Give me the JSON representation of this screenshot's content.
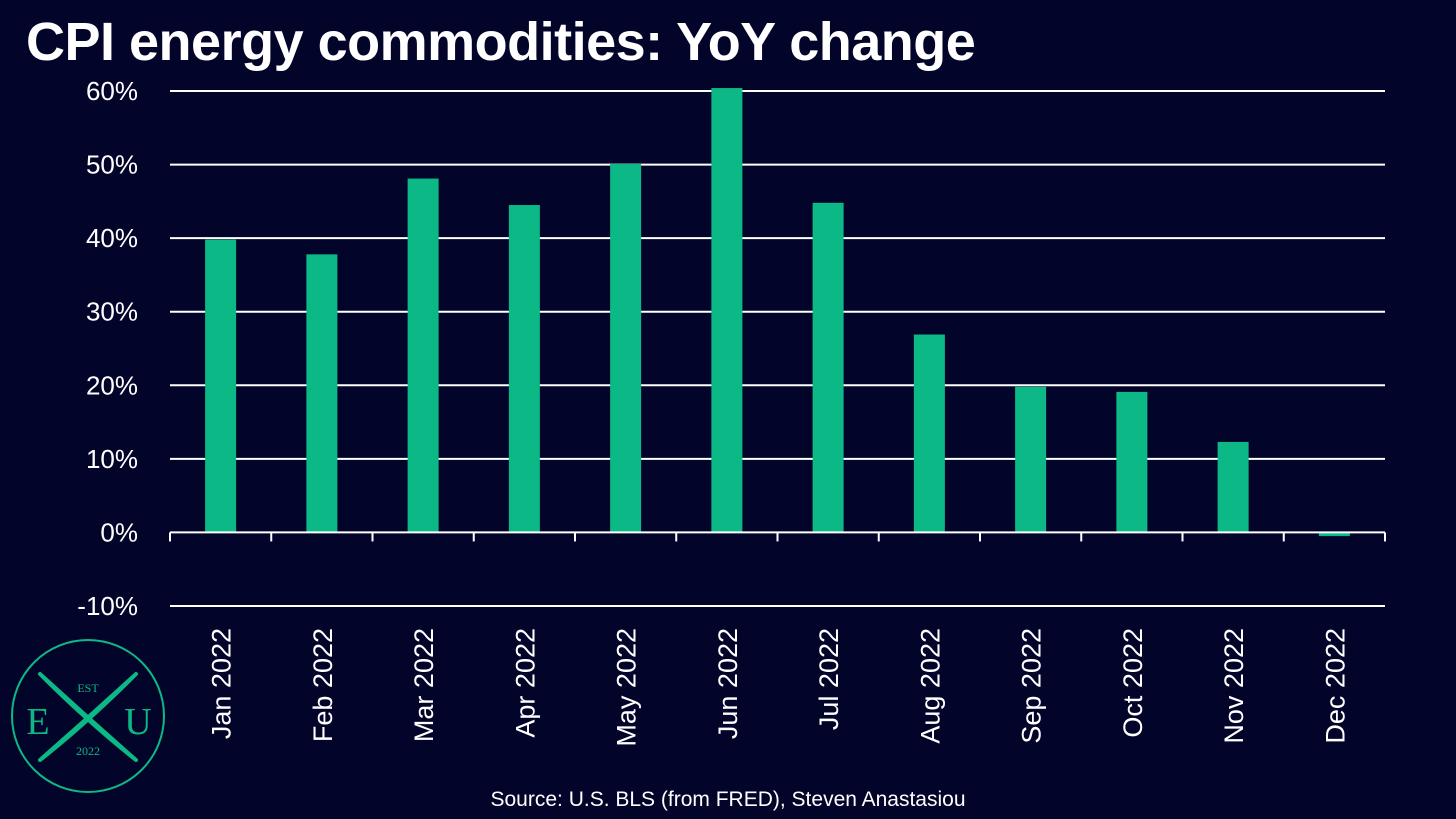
{
  "title": "CPI energy commodities: YoY change",
  "source": "Source: U.S. BLS (from FRED), Steven Anastasiou",
  "logo": {
    "top_text": "EST",
    "left_letter": "E",
    "right_letter": "U",
    "bottom_text": "2022"
  },
  "colors": {
    "background": "#03042a",
    "bar": "#0cb886",
    "grid": "#ffffff",
    "text": "#ffffff",
    "logo": "#0cb886"
  },
  "chart_data": {
    "type": "bar",
    "title": "CPI energy commodities: YoY change",
    "xlabel": "",
    "ylabel": "",
    "categories": [
      "Jan 2022",
      "Feb 2022",
      "Mar 2022",
      "Apr 2022",
      "May 2022",
      "Jun 2022",
      "Jul 2022",
      "Aug 2022",
      "Sep 2022",
      "Oct 2022",
      "Nov 2022",
      "Dec 2022"
    ],
    "values": [
      39.8,
      37.8,
      48.1,
      44.5,
      50.1,
      60.4,
      44.8,
      26.9,
      19.8,
      19.1,
      12.3,
      -0.5
    ],
    "ylim": [
      -10,
      60
    ],
    "yticks": [
      -10,
      0,
      10,
      20,
      30,
      40,
      50,
      60
    ],
    "ytick_labels": [
      "-10%",
      "0%",
      "10%",
      "20%",
      "30%",
      "40%",
      "50%",
      "60%"
    ],
    "grid": true,
    "legend": "none"
  }
}
